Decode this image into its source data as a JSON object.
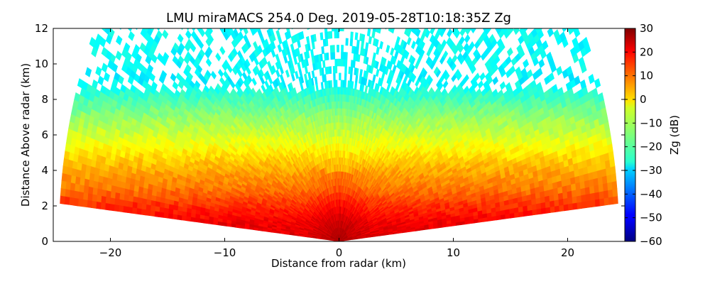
{
  "chart_data": {
    "type": "heatmap",
    "title": "LMU miraMACS 254.0 Deg. 2019-05-28T10:18:35Z  Zg",
    "xlabel": "Distance from radar (km)",
    "ylabel": "Distance Above radar  (km)",
    "colorbar_label": "Zg (dB)",
    "xlim": [
      -25,
      25
    ],
    "ylim": [
      0,
      12
    ],
    "x_ticks": [
      -20,
      -10,
      0,
      10,
      20
    ],
    "y_ticks": [
      0,
      2,
      4,
      6,
      8,
      10,
      12
    ],
    "colorbar_range": [
      -60,
      30
    ],
    "colorbar_ticks": [
      30,
      20,
      10,
      0,
      -10,
      -20,
      -30,
      -40,
      -50,
      -60
    ],
    "colormap": "jet",
    "scan": {
      "elevation_min_deg": 5,
      "elevation_max_deg": 175,
      "max_range_km": 24.5,
      "azimuth_deg": 254.0
    },
    "reflectivity_profile": {
      "heights_km": [
        0,
        1,
        2,
        3,
        4,
        5,
        6,
        7,
        8,
        9,
        10,
        11,
        12
      ],
      "zg_db": [
        22,
        20,
        15,
        8,
        4,
        -2,
        -8,
        -13,
        -20,
        -27,
        -26,
        -26,
        -26
      ],
      "note_visible_features": ""
    },
    "grid": false,
    "legend": "colorbar-right"
  }
}
